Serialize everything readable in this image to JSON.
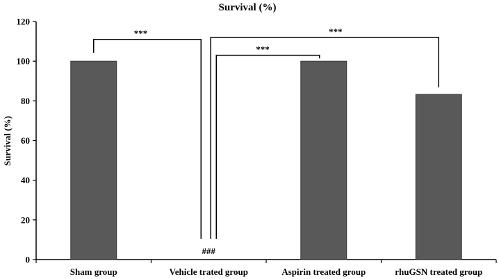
{
  "chart_data": {
    "type": "bar",
    "title": "Survival (%)",
    "xlabel": "",
    "ylabel": "Survival (%)",
    "ylim": [
      0,
      120
    ],
    "yticks": [
      0,
      20,
      40,
      60,
      80,
      100,
      120
    ],
    "grid": false,
    "legend": "none",
    "categories": [
      "Sham group",
      "Vehicle trated group",
      "Aspirin treated group",
      "rhuGSN treated group"
    ],
    "values": [
      100,
      0,
      100,
      83.3
    ],
    "bar_color": "#595959",
    "annotations": [
      {
        "text": "***",
        "type": "bracket",
        "from": "Sham group",
        "to": "Vehicle trated group"
      },
      {
        "text": "***",
        "type": "bracket",
        "from": "Vehicle trated group",
        "to": "Aspirin treated group"
      },
      {
        "text": "***",
        "type": "bracket",
        "from": "Vehicle trated group",
        "to": "rhuGSN treated group"
      },
      {
        "text": "###",
        "type": "label",
        "at": "Vehicle trated group"
      }
    ]
  }
}
